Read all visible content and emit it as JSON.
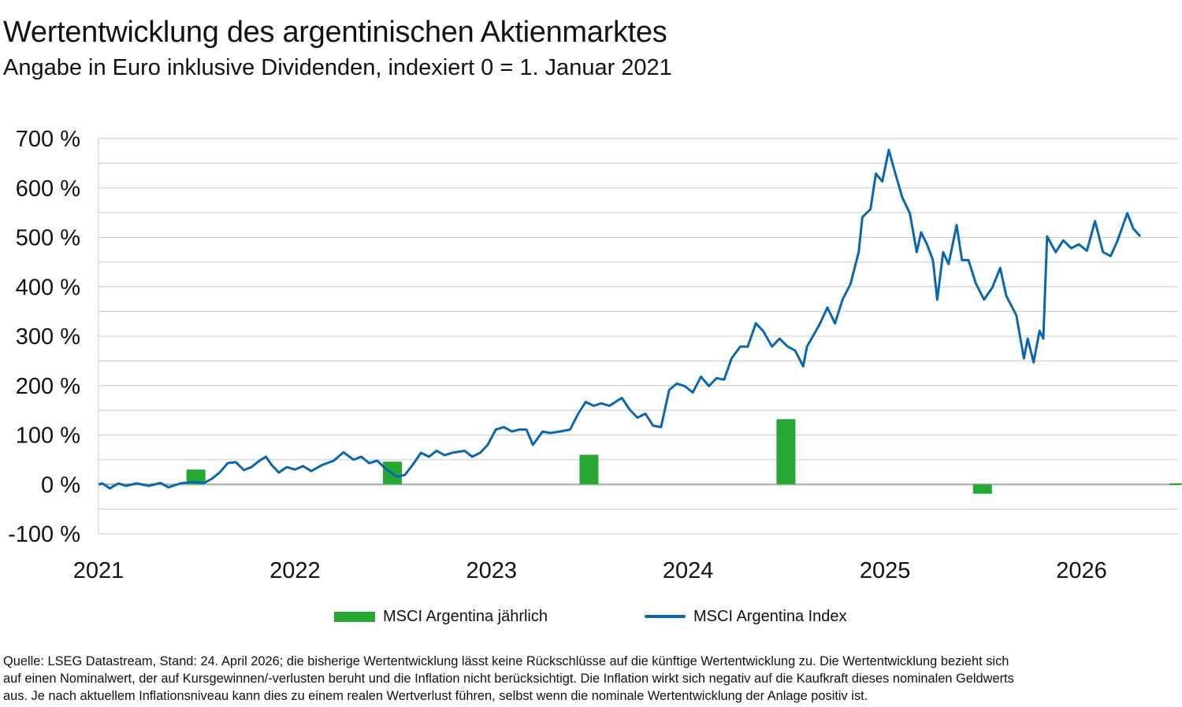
{
  "header": {
    "title": "Wertentwicklung des argentinischen Aktienmarktes",
    "subtitle": "Angabe in Euro inklusive Dividenden, indexiert 0 = 1. Januar 2021"
  },
  "chart_data": {
    "type": "bar+line",
    "title": "Wertentwicklung des argentinischen Aktienmarktes",
    "subtitle": "Angabe in Euro inklusive Dividenden, indexiert 0 = 1. Januar 2021",
    "xlabel": "",
    "ylabel": "",
    "ylim": [
      -100,
      700
    ],
    "xlim": [
      "2021-01-01",
      "2026-06-30"
    ],
    "y_ticks": [
      {
        "value": -100,
        "label": "-100 %"
      },
      {
        "value": 0,
        "label": "0 %"
      },
      {
        "value": 100,
        "label": "100 %"
      },
      {
        "value": 200,
        "label": "200 %"
      },
      {
        "value": 300,
        "label": "300 %"
      },
      {
        "value": 400,
        "label": "400 %"
      },
      {
        "value": 500,
        "label": "500 %"
      },
      {
        "value": 600,
        "label": "600 %"
      },
      {
        "value": 700,
        "label": "700 %"
      }
    ],
    "x_ticks": [
      {
        "date": "2021-01-01",
        "label": "2021"
      },
      {
        "date": "2022-01-01",
        "label": "2022"
      },
      {
        "date": "2023-01-01",
        "label": "2023"
      },
      {
        "date": "2024-01-01",
        "label": "2024"
      },
      {
        "date": "2025-01-01",
        "label": "2025"
      },
      {
        "date": "2026-01-01",
        "label": "2026"
      }
    ],
    "grid": true,
    "grid_step": 50,
    "legend_position": "bottom",
    "series": [
      {
        "name": "MSCI Argentina jährlich",
        "type": "bar",
        "color": "#27a733",
        "categories": [
          "2021",
          "2022",
          "2023",
          "2024",
          "2025",
          "2026"
        ],
        "values": [
          30,
          46,
          60,
          132,
          -19,
          2
        ]
      },
      {
        "name": "MSCI Argentina Index",
        "type": "line",
        "color": "#0a66b0",
        "points": [
          [
            "2021-01-01",
            0
          ],
          [
            "2021-01-08",
            2
          ],
          [
            "2021-01-22",
            -8
          ],
          [
            "2021-02-07",
            2
          ],
          [
            "2021-02-21",
            -3
          ],
          [
            "2021-03-13",
            2
          ],
          [
            "2021-04-05",
            -3
          ],
          [
            "2021-04-26",
            3
          ],
          [
            "2021-05-11",
            -6
          ],
          [
            "2021-06-02",
            2
          ],
          [
            "2021-06-24",
            5
          ],
          [
            "2021-07-16",
            3
          ],
          [
            "2021-07-30",
            11
          ],
          [
            "2021-08-14",
            24
          ],
          [
            "2021-08-29",
            43
          ],
          [
            "2021-09-13",
            45
          ],
          [
            "2021-09-28",
            29
          ],
          [
            "2021-10-12",
            35
          ],
          [
            "2021-10-27",
            48
          ],
          [
            "2021-11-08",
            56
          ],
          [
            "2021-11-18",
            40
          ],
          [
            "2021-12-02",
            24
          ],
          [
            "2021-12-17",
            35
          ],
          [
            "2022-01-01",
            30
          ],
          [
            "2022-01-16",
            37
          ],
          [
            "2022-01-31",
            27
          ],
          [
            "2022-02-22",
            40
          ],
          [
            "2022-03-14",
            48
          ],
          [
            "2022-04-01",
            65
          ],
          [
            "2022-04-20",
            50
          ],
          [
            "2022-05-04",
            56
          ],
          [
            "2022-05-19",
            43
          ],
          [
            "2022-06-03",
            48
          ],
          [
            "2022-06-18",
            32
          ],
          [
            "2022-07-09",
            16
          ],
          [
            "2022-07-24",
            19
          ],
          [
            "2022-08-08",
            40
          ],
          [
            "2022-08-23",
            64
          ],
          [
            "2022-09-07",
            56
          ],
          [
            "2022-09-21",
            68
          ],
          [
            "2022-10-06",
            59
          ],
          [
            "2022-10-20",
            64
          ],
          [
            "2022-11-12",
            68
          ],
          [
            "2022-11-26",
            56
          ],
          [
            "2022-12-11",
            64
          ],
          [
            "2022-12-25",
            80
          ],
          [
            "2023-01-09",
            111
          ],
          [
            "2023-01-24",
            116
          ],
          [
            "2023-02-08",
            107
          ],
          [
            "2023-02-22",
            111
          ],
          [
            "2023-03-07",
            111
          ],
          [
            "2023-03-19",
            80
          ],
          [
            "2023-04-06",
            107
          ],
          [
            "2023-04-20",
            104
          ],
          [
            "2023-05-08",
            107
          ],
          [
            "2023-05-27",
            111
          ],
          [
            "2023-06-11",
            143
          ],
          [
            "2023-06-25",
            167
          ],
          [
            "2023-07-10",
            159
          ],
          [
            "2023-07-24",
            164
          ],
          [
            "2023-08-08",
            159
          ],
          [
            "2023-08-31",
            175
          ],
          [
            "2023-09-15",
            151
          ],
          [
            "2023-09-29",
            135
          ],
          [
            "2023-10-14",
            143
          ],
          [
            "2023-10-28",
            119
          ],
          [
            "2023-11-12",
            116
          ],
          [
            "2023-11-27",
            191
          ],
          [
            "2023-12-11",
            204
          ],
          [
            "2023-12-26",
            199
          ],
          [
            "2024-01-10",
            186
          ],
          [
            "2024-01-25",
            218
          ],
          [
            "2024-02-09",
            199
          ],
          [
            "2024-02-23",
            215
          ],
          [
            "2024-03-08",
            212
          ],
          [
            "2024-03-22",
            255
          ],
          [
            "2024-04-07",
            279
          ],
          [
            "2024-04-21",
            279
          ],
          [
            "2024-05-06",
            326
          ],
          [
            "2024-05-20",
            310
          ],
          [
            "2024-06-05",
            279
          ],
          [
            "2024-06-19",
            295
          ],
          [
            "2024-07-04",
            279
          ],
          [
            "2024-07-18",
            271
          ],
          [
            "2024-08-02",
            239
          ],
          [
            "2024-08-09",
            279
          ],
          [
            "2024-09-01",
            323
          ],
          [
            "2024-09-16",
            358
          ],
          [
            "2024-09-30",
            326
          ],
          [
            "2024-10-14",
            374
          ],
          [
            "2024-10-29",
            406
          ],
          [
            "2024-11-13",
            470
          ],
          [
            "2024-11-20",
            541
          ],
          [
            "2024-12-05",
            557
          ],
          [
            "2024-12-15",
            629
          ],
          [
            "2024-12-27",
            613
          ],
          [
            "2025-01-08",
            677
          ],
          [
            "2025-01-18",
            637
          ],
          [
            "2025-02-02",
            581
          ],
          [
            "2025-02-16",
            549
          ],
          [
            "2025-03-01",
            470
          ],
          [
            "2025-03-09",
            510
          ],
          [
            "2025-03-20",
            486
          ],
          [
            "2025-03-31",
            454
          ],
          [
            "2025-04-08",
            374
          ],
          [
            "2025-04-19",
            470
          ],
          [
            "2025-04-29",
            446
          ],
          [
            "2025-05-14",
            525
          ],
          [
            "2025-05-24",
            454
          ],
          [
            "2025-06-05",
            454
          ],
          [
            "2025-06-19",
            406
          ],
          [
            "2025-07-04",
            374
          ],
          [
            "2025-07-19",
            398
          ],
          [
            "2025-08-03",
            438
          ],
          [
            "2025-08-14",
            382
          ],
          [
            "2025-09-02",
            342
          ],
          [
            "2025-09-16",
            255
          ],
          [
            "2025-09-23",
            295
          ],
          [
            "2025-10-04",
            247
          ],
          [
            "2025-10-15",
            311
          ],
          [
            "2025-10-22",
            295
          ],
          [
            "2025-10-29",
            502
          ],
          [
            "2025-11-14",
            470
          ],
          [
            "2025-11-28",
            494
          ],
          [
            "2025-12-13",
            478
          ],
          [
            "2025-12-27",
            486
          ],
          [
            "2026-01-11",
            473
          ],
          [
            "2026-01-26",
            533
          ],
          [
            "2026-02-10",
            470
          ],
          [
            "2026-02-24",
            462
          ],
          [
            "2026-03-09",
            494
          ],
          [
            "2026-03-27",
            549
          ],
          [
            "2026-04-07",
            518
          ],
          [
            "2026-04-20",
            502
          ]
        ]
      }
    ]
  },
  "legend": {
    "bar_label": "MSCI Argentina jährlich",
    "line_label": "MSCI Argentina Index"
  },
  "source": {
    "lines": [
      "Quelle: LSEG Datastream, Stand: 24. April 2026; die bisherige Wertentwicklung lässt keine Rückschlüsse auf die künftige Wertentwicklung zu. Die Wertentwicklung bezieht sich",
      "auf einen Nominalwert, der auf Kursgewinnen/-verlusten beruht und die Inflation nicht berücksichtigt. Die Inflation wirkt sich negativ auf die Kaufkraft dieses nominalen Geldwerts",
      "aus. Je nach aktuellem Inflationsniveau kann dies zu einem realen Wertverlust führen, selbst wenn die nominale Wertentwicklung der Anlage positiv ist."
    ]
  }
}
